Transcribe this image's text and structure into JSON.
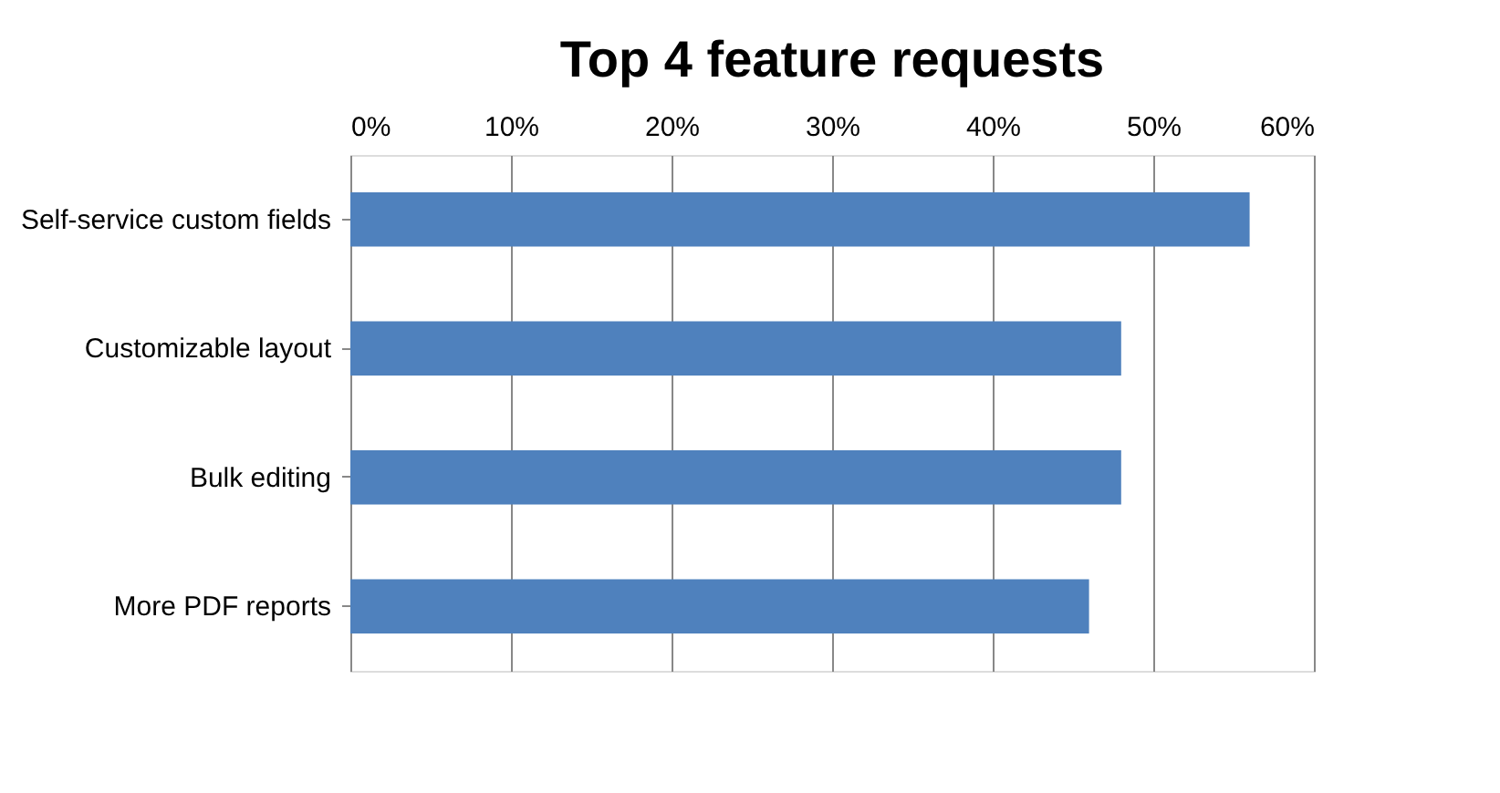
{
  "chart_data": {
    "type": "bar",
    "orientation": "horizontal",
    "title": "Top 4 feature requests",
    "categories": [
      "Self-service custom fields",
      "Customizable layout",
      "Bulk editing",
      "More PDF reports"
    ],
    "values": [
      56,
      48,
      48,
      46
    ],
    "color": "#4f81bd",
    "xlim": [
      0,
      60
    ],
    "xticks": [
      {
        "value": 0,
        "label": "0%"
      },
      {
        "value": 10,
        "label": "10%"
      },
      {
        "value": 20,
        "label": "20%"
      },
      {
        "value": 30,
        "label": "30%"
      },
      {
        "value": 40,
        "label": "40%"
      },
      {
        "value": 50,
        "label": "50%"
      },
      {
        "value": 60,
        "label": "60%"
      }
    ],
    "grid": "x"
  }
}
